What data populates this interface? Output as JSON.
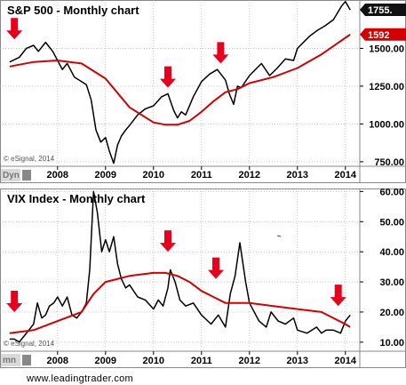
{
  "colors": {
    "price": "#000000",
    "average": "#d40000",
    "arrow": "#e8001c",
    "grid": "#aaaaaa",
    "last_badge_bg": "#111111"
  },
  "footer": "www.leadingtrader.com",
  "chart_data": [
    {
      "type": "line",
      "title": "S&P 500 - Monthly chart",
      "watermark": "© eSignal, 2014",
      "corner_label": "Dyn",
      "x_ticks": [
        "2008",
        "2009",
        "2010",
        "2011",
        "2012",
        "2013",
        "2014"
      ],
      "y_ticks": [
        "1500.00",
        "1250.00",
        "1000.00",
        "750.00"
      ],
      "ylim": [
        720,
        1820
      ],
      "last_labels": [
        {
          "text": "1755.",
          "value": 1755,
          "color": "#000000"
        },
        {
          "text": "1592",
          "value": 1592,
          "color": "#d40000"
        }
      ],
      "series": [
        {
          "name": "",
          "role": "price",
          "x": [
            2007.0,
            2007.2,
            2007.35,
            2007.5,
            2007.6,
            2007.75,
            2007.9,
            2008.0,
            2008.1,
            2008.2,
            2008.35,
            2008.5,
            2008.6,
            2008.7,
            2008.8,
            2008.9,
            2009.0,
            2009.08,
            2009.17,
            2009.25,
            2009.33,
            2009.42,
            2009.5,
            2009.67,
            2009.83,
            2010.0,
            2010.17,
            2010.3,
            2010.42,
            2010.5,
            2010.58,
            2010.67,
            2010.83,
            2011.0,
            2011.17,
            2011.33,
            2011.5,
            2011.58,
            2011.67,
            2011.75,
            2011.83,
            2012.0,
            2012.25,
            2012.42,
            2012.58,
            2012.75,
            2012.92,
            2013.0,
            2013.25,
            2013.42,
            2013.58,
            2013.75,
            2013.92,
            2014.0,
            2014.1
          ],
          "y": [
            1410,
            1440,
            1500,
            1520,
            1480,
            1540,
            1480,
            1420,
            1360,
            1400,
            1310,
            1280,
            1260,
            1160,
            960,
            880,
            910,
            820,
            740,
            860,
            920,
            960,
            990,
            1060,
            1100,
            1120,
            1180,
            1200,
            1090,
            1040,
            1080,
            1060,
            1180,
            1280,
            1330,
            1360,
            1290,
            1200,
            1130,
            1250,
            1240,
            1320,
            1400,
            1320,
            1370,
            1430,
            1420,
            1500,
            1580,
            1620,
            1650,
            1690,
            1780,
            1810,
            1755
          ]
        },
        {
          "name": "",
          "role": "average",
          "x": [
            2007.0,
            2007.5,
            2008.0,
            2008.5,
            2009.0,
            2009.5,
            2010.0,
            2010.25,
            2010.5,
            2010.75,
            2011.0,
            2011.25,
            2011.5,
            2011.75,
            2012.0,
            2012.5,
            2013.0,
            2013.5,
            2014.0,
            2014.1
          ],
          "y": [
            1380,
            1410,
            1420,
            1400,
            1300,
            1110,
            1010,
            995,
            995,
            1020,
            1080,
            1150,
            1210,
            1230,
            1270,
            1310,
            1370,
            1460,
            1570,
            1592
          ]
        }
      ],
      "annotations": [
        {
          "type": "down-arrow",
          "x": 2007.1,
          "y": 1560
        },
        {
          "type": "down-arrow",
          "x": 2010.3,
          "y": 1240
        },
        {
          "type": "down-arrow",
          "x": 2011.4,
          "y": 1400
        },
        {
          "type": "down-arrow",
          "x": 2013.8,
          "y": 1830
        }
      ]
    },
    {
      "type": "line",
      "title": "VIX Index - Monthly chart",
      "watermark": "© eSignal, 2014",
      "corner_label": "mn",
      "x_ticks": [
        "2008",
        "2009",
        "2010",
        "2011",
        "2012",
        "2013",
        "2014"
      ],
      "y_ticks": [
        "60.00",
        "50.00",
        "40.00",
        "30.00",
        "20.00",
        "10.00"
      ],
      "ylim": [
        7,
        61
      ],
      "series": [
        {
          "name": "",
          "role": "price",
          "x": [
            2007.0,
            2007.1,
            2007.2,
            2007.3,
            2007.4,
            2007.5,
            2007.58,
            2007.67,
            2007.75,
            2007.83,
            2007.92,
            2008.0,
            2008.1,
            2008.2,
            2008.3,
            2008.4,
            2008.5,
            2008.6,
            2008.67,
            2008.75,
            2008.83,
            2008.92,
            2009.0,
            2009.08,
            2009.17,
            2009.25,
            2009.33,
            2009.42,
            2009.5,
            2009.67,
            2009.83,
            2010.0,
            2010.1,
            2010.2,
            2010.3,
            2010.35,
            2010.45,
            2010.55,
            2010.67,
            2010.83,
            2011.0,
            2011.2,
            2011.35,
            2011.5,
            2011.6,
            2011.7,
            2011.8,
            2011.92,
            2012.0,
            2012.2,
            2012.35,
            2012.45,
            2012.6,
            2012.75,
            2012.92,
            2013.0,
            2013.2,
            2013.4,
            2013.5,
            2013.6,
            2013.75,
            2013.9,
            2014.0,
            2014.1
          ],
          "y": [
            11,
            11,
            10,
            12,
            14,
            16,
            23,
            18,
            19,
            22,
            23,
            25,
            22,
            25,
            19,
            18,
            20,
            23,
            34,
            60,
            53,
            40,
            44,
            40,
            45,
            36,
            31,
            28,
            29,
            25,
            24,
            21,
            24,
            22,
            28,
            34,
            30,
            24,
            22,
            23,
            19,
            16,
            19,
            15,
            26,
            32,
            43,
            30,
            23,
            17,
            15,
            20,
            17,
            16,
            18,
            14,
            13,
            15,
            13,
            14,
            14,
            13,
            17,
            19
          ]
        },
        {
          "name": "",
          "role": "average",
          "x": [
            2007.0,
            2007.5,
            2008.0,
            2008.5,
            2008.75,
            2009.0,
            2009.5,
            2010.0,
            2010.25,
            2010.5,
            2010.75,
            2011.0,
            2011.25,
            2011.5,
            2011.75,
            2012.0,
            2012.5,
            2013.0,
            2013.5,
            2014.0,
            2014.1
          ],
          "y": [
            13,
            14,
            17,
            20,
            26,
            30,
            32,
            33,
            33,
            32,
            30,
            27,
            25,
            23,
            23,
            23,
            22,
            21,
            20,
            16,
            15
          ]
        }
      ],
      "annotations": [
        {
          "type": "down-arrow",
          "x": 2007.1,
          "y": 20
        },
        {
          "type": "down-arrow",
          "x": 2010.3,
          "y": 40
        },
        {
          "type": "down-arrow",
          "x": 2011.3,
          "y": 31
        },
        {
          "type": "down-arrow",
          "x": 2013.85,
          "y": 22
        }
      ]
    }
  ]
}
